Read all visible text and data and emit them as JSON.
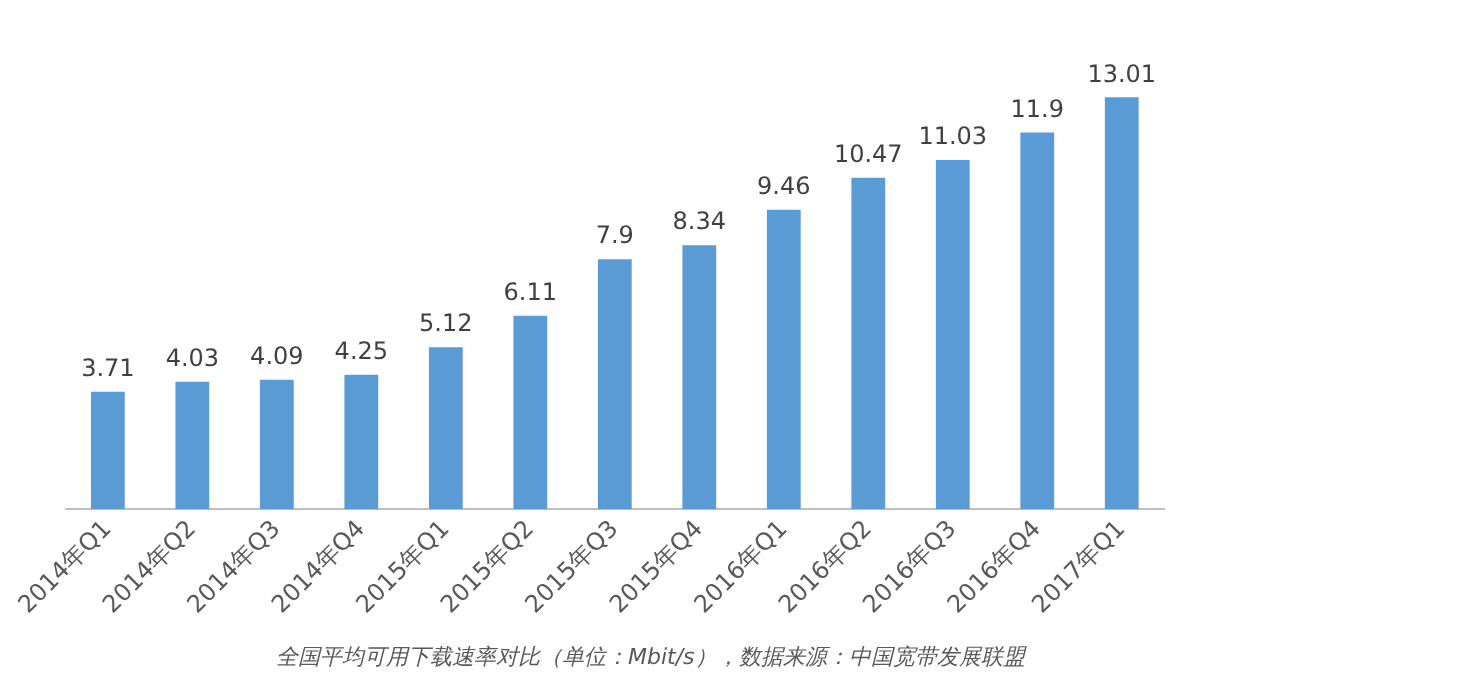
{
  "chart_data": {
    "type": "bar",
    "categories": [
      "2014年Q1",
      "2014年Q2",
      "2014年Q3",
      "2014年Q4",
      "2015年Q1",
      "2015年Q2",
      "2015年Q3",
      "2015年Q4",
      "2016年Q1",
      "2016年Q2",
      "2016年Q3",
      "2016年Q4",
      "2017年Q1"
    ],
    "values": [
      3.71,
      4.03,
      4.09,
      4.25,
      5.12,
      6.11,
      7.9,
      8.34,
      9.46,
      10.47,
      11.03,
      11.9,
      13.01
    ],
    "color": "#5b9bd5",
    "data_labels": true,
    "grid": false,
    "legend": false,
    "annotations": [
      "全国平均可用下载速率对比（单位：Mbit/s），数据来源：中国宽带发展联盟"
    ]
  }
}
